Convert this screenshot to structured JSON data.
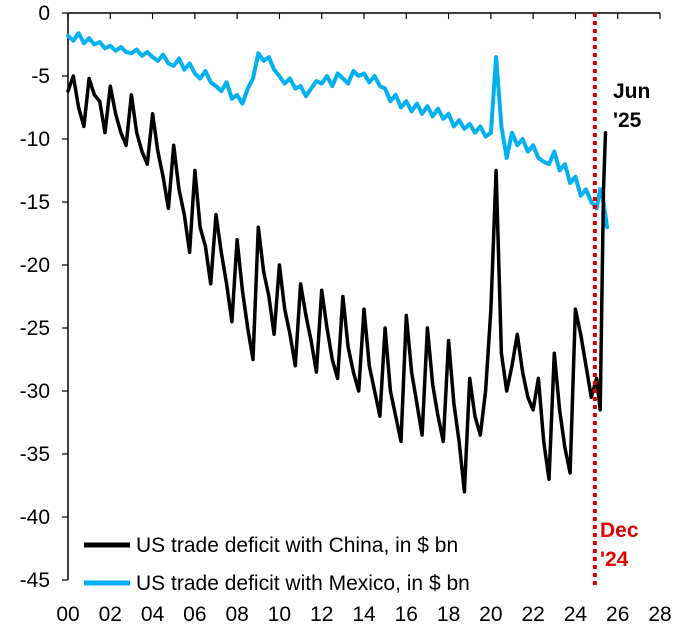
{
  "chart_data": {
    "type": "line",
    "title": "",
    "xlabel": "",
    "ylabel": "",
    "xlim": [
      2000,
      2028
    ],
    "ylim": [
      -45,
      0
    ],
    "x_ticks": [
      2000,
      2002,
      2004,
      2006,
      2008,
      2010,
      2012,
      2014,
      2016,
      2018,
      2020,
      2022,
      2024,
      2026,
      2028
    ],
    "x_tick_labels": [
      "00",
      "02",
      "04",
      "06",
      "08",
      "10",
      "12",
      "14",
      "16",
      "18",
      "20",
      "22",
      "24",
      "26",
      "28"
    ],
    "y_ticks": [
      0,
      -5,
      -10,
      -15,
      -20,
      -25,
      -30,
      -35,
      -40,
      -45
    ],
    "y_tick_labels": [
      "0",
      "-5",
      "-10",
      "-15",
      "-20",
      "-25",
      "-30",
      "-35",
      "-40",
      "-45"
    ],
    "grid": false,
    "legend_position": "bottom-left",
    "series": [
      {
        "name": "US trade deficit with China, in $ bn",
        "color": "#000000",
        "x": [
          2000.0,
          2000.25,
          2000.5,
          2000.75,
          2001.0,
          2001.25,
          2001.5,
          2001.75,
          2002.0,
          2002.25,
          2002.5,
          2002.75,
          2003.0,
          2003.25,
          2003.5,
          2003.75,
          2004.0,
          2004.25,
          2004.5,
          2004.75,
          2005.0,
          2005.25,
          2005.5,
          2005.75,
          2006.0,
          2006.25,
          2006.5,
          2006.75,
          2007.0,
          2007.25,
          2007.5,
          2007.75,
          2008.0,
          2008.25,
          2008.5,
          2008.75,
          2009.0,
          2009.25,
          2009.5,
          2009.75,
          2010.0,
          2010.25,
          2010.5,
          2010.75,
          2011.0,
          2011.25,
          2011.5,
          2011.75,
          2012.0,
          2012.25,
          2012.5,
          2012.75,
          2013.0,
          2013.25,
          2013.5,
          2013.75,
          2014.0,
          2014.25,
          2014.5,
          2014.75,
          2015.0,
          2015.25,
          2015.5,
          2015.75,
          2016.0,
          2016.25,
          2016.5,
          2016.75,
          2017.0,
          2017.25,
          2017.5,
          2017.75,
          2018.0,
          2018.25,
          2018.5,
          2018.75,
          2019.0,
          2019.25,
          2019.5,
          2019.75,
          2020.0,
          2020.25,
          2020.5,
          2020.75,
          2021.0,
          2021.25,
          2021.5,
          2021.75,
          2022.0,
          2022.25,
          2022.5,
          2022.75,
          2023.0,
          2023.25,
          2023.5,
          2023.75,
          2024.0,
          2024.25,
          2024.5,
          2024.75,
          2025.0,
          2025.17,
          2025.33,
          2025.42
        ],
        "values": [
          -6.2,
          -5.0,
          -7.5,
          -9.0,
          -5.2,
          -6.5,
          -7.0,
          -9.5,
          -5.8,
          -8.0,
          -9.5,
          -10.5,
          -6.5,
          -9.5,
          -11.0,
          -12.0,
          -8.0,
          -11.0,
          -13.0,
          -15.5,
          -10.5,
          -14.0,
          -16.0,
          -19.0,
          -12.5,
          -17.0,
          -18.5,
          -21.5,
          -16.0,
          -19.0,
          -21.5,
          -24.5,
          -18.0,
          -22.0,
          -25.0,
          -27.5,
          -17.0,
          -20.5,
          -22.5,
          -25.5,
          -20.0,
          -23.5,
          -25.5,
          -28.0,
          -21.5,
          -24.0,
          -26.0,
          -28.5,
          -22.0,
          -25.0,
          -27.5,
          -29.0,
          -22.5,
          -26.5,
          -28.5,
          -30.0,
          -23.5,
          -28.0,
          -30.0,
          -32.0,
          -25.0,
          -30.0,
          -32.0,
          -34.0,
          -24.0,
          -28.5,
          -31.0,
          -33.5,
          -25.0,
          -29.5,
          -32.0,
          -34.0,
          -26.0,
          -31.0,
          -34.0,
          -38.0,
          -29.0,
          -32.0,
          -33.5,
          -30.0,
          -23.5,
          -12.5,
          -27.0,
          -30.0,
          -28.0,
          -25.5,
          -28.5,
          -30.5,
          -31.5,
          -29.0,
          -34.0,
          -37.0,
          -27.0,
          -31.5,
          -34.5,
          -36.5,
          -23.5,
          -25.5,
          -28.0,
          -30.5,
          -29.0,
          -31.5,
          -14.0,
          -9.5
        ]
      },
      {
        "name": "US trade deficit with Mexico, in $ bn",
        "color": "#00b0f0",
        "x": [
          2000.0,
          2000.25,
          2000.5,
          2000.75,
          2001.0,
          2001.25,
          2001.5,
          2001.75,
          2002.0,
          2002.25,
          2002.5,
          2002.75,
          2003.0,
          2003.25,
          2003.5,
          2003.75,
          2004.0,
          2004.25,
          2004.5,
          2004.75,
          2005.0,
          2005.25,
          2005.5,
          2005.75,
          2006.0,
          2006.25,
          2006.5,
          2006.75,
          2007.0,
          2007.25,
          2007.5,
          2007.75,
          2008.0,
          2008.25,
          2008.5,
          2008.75,
          2009.0,
          2009.25,
          2009.5,
          2009.75,
          2010.0,
          2010.25,
          2010.5,
          2010.75,
          2011.0,
          2011.25,
          2011.5,
          2011.75,
          2012.0,
          2012.25,
          2012.5,
          2012.75,
          2013.0,
          2013.25,
          2013.5,
          2013.75,
          2014.0,
          2014.25,
          2014.5,
          2014.75,
          2015.0,
          2015.25,
          2015.5,
          2015.75,
          2016.0,
          2016.25,
          2016.5,
          2016.75,
          2017.0,
          2017.25,
          2017.5,
          2017.75,
          2018.0,
          2018.25,
          2018.5,
          2018.75,
          2019.0,
          2019.25,
          2019.5,
          2019.75,
          2020.0,
          2020.25,
          2020.5,
          2020.75,
          2021.0,
          2021.25,
          2021.5,
          2021.75,
          2022.0,
          2022.25,
          2022.5,
          2022.75,
          2023.0,
          2023.25,
          2023.5,
          2023.75,
          2024.0,
          2024.25,
          2024.5,
          2024.75,
          2025.0,
          2025.17,
          2025.33,
          2025.5
        ],
        "values": [
          -1.8,
          -2.2,
          -1.6,
          -2.4,
          -2.0,
          -2.5,
          -2.3,
          -2.8,
          -2.6,
          -3.0,
          -2.7,
          -3.1,
          -3.2,
          -2.9,
          -3.4,
          -3.1,
          -3.5,
          -3.8,
          -3.3,
          -4.0,
          -4.2,
          -3.6,
          -4.5,
          -4.0,
          -4.8,
          -5.2,
          -4.6,
          -5.5,
          -5.8,
          -6.2,
          -5.5,
          -6.8,
          -6.5,
          -7.2,
          -6.0,
          -5.2,
          -3.2,
          -3.8,
          -3.5,
          -4.5,
          -5.0,
          -5.6,
          -5.2,
          -6.0,
          -5.8,
          -6.6,
          -6.0,
          -5.4,
          -5.6,
          -5.0,
          -5.8,
          -4.8,
          -5.2,
          -5.6,
          -4.6,
          -5.0,
          -4.8,
          -5.5,
          -5.0,
          -5.8,
          -6.0,
          -7.0,
          -6.5,
          -7.5,
          -7.0,
          -7.8,
          -7.2,
          -8.0,
          -7.4,
          -8.2,
          -7.6,
          -8.4,
          -8.0,
          -9.0,
          -8.5,
          -9.2,
          -8.8,
          -9.5,
          -9.0,
          -9.8,
          -9.5,
          -3.5,
          -9.0,
          -11.5,
          -9.5,
          -10.5,
          -10.0,
          -11.0,
          -10.5,
          -11.5,
          -11.8,
          -12.0,
          -11.0,
          -12.5,
          -12.0,
          -13.5,
          -13.0,
          -14.5,
          -14.0,
          -15.0,
          -15.5,
          -14.0,
          -15.0,
          -17.0
        ]
      }
    ],
    "annotations": [
      {
        "id": "jun25",
        "lines": [
          "Jun",
          "'25"
        ],
        "x": 2026.0
      },
      {
        "id": "dec24",
        "lines": [
          "Dec",
          "'24"
        ],
        "x": 2024.92
      }
    ],
    "reference_line": {
      "x": 2024.92,
      "color": "#e00000",
      "style": "dotted"
    }
  }
}
